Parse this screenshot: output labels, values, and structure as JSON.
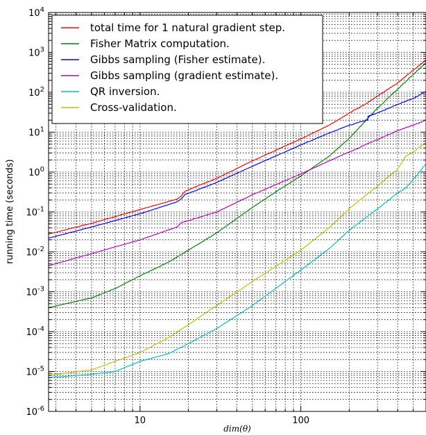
{
  "chart_data": {
    "type": "line",
    "xlabel": "dim(θ)",
    "ylabel": "running time (seconds)",
    "xscale": "log",
    "yscale": "log",
    "xlim": [
      2.7,
      600
    ],
    "ylim": [
      1e-06,
      10000
    ],
    "grid": true,
    "legend_position": "top-left",
    "x_tick_labels": [
      {
        "value": 10,
        "label": "10"
      },
      {
        "value": 100,
        "label": "100"
      }
    ],
    "y_tick_labels": [
      {
        "value": 1e-06,
        "base": "10",
        "exp": "-6"
      },
      {
        "value": 1e-05,
        "base": "10",
        "exp": "-5"
      },
      {
        "value": 0.0001,
        "base": "10",
        "exp": "-4"
      },
      {
        "value": 0.001,
        "base": "10",
        "exp": "-3"
      },
      {
        "value": 0.01,
        "base": "10",
        "exp": "-2"
      },
      {
        "value": 0.1,
        "base": "10",
        "exp": "-1"
      },
      {
        "value": 1,
        "base": "10",
        "exp": "0"
      },
      {
        "value": 10,
        "base": "10",
        "exp": "1"
      },
      {
        "value": 100,
        "base": "10",
        "exp": "2"
      },
      {
        "value": 1000,
        "base": "10",
        "exp": "3"
      },
      {
        "value": 10000,
        "base": "10",
        "exp": "4"
      }
    ],
    "series": [
      {
        "name": "total time for 1 natural gradient step.",
        "color": "#ff0000",
        "points": [
          [
            2.7,
            0.028
          ],
          [
            5,
            0.052
          ],
          [
            10,
            0.115
          ],
          [
            17,
            0.21
          ],
          [
            18,
            0.25
          ],
          [
            19,
            0.33
          ],
          [
            30,
            0.7
          ],
          [
            50,
            1.9
          ],
          [
            100,
            6.8
          ],
          [
            150,
            15
          ],
          [
            200,
            30
          ],
          [
            260,
            55
          ],
          [
            300,
            80
          ],
          [
            400,
            170
          ],
          [
            500,
            360
          ],
          [
            600,
            650
          ]
        ]
      },
      {
        "name": "Fisher Matrix computation.",
        "color": "#008000",
        "points": [
          [
            2.7,
            0.0004
          ],
          [
            5,
            0.0007
          ],
          [
            7,
            0.0012
          ],
          [
            10,
            0.0025
          ],
          [
            15,
            0.0055
          ],
          [
            20,
            0.011
          ],
          [
            30,
            0.03
          ],
          [
            50,
            0.13
          ],
          [
            70,
            0.32
          ],
          [
            100,
            0.8
          ],
          [
            150,
            2.5
          ],
          [
            200,
            7
          ],
          [
            260,
            22
          ],
          [
            300,
            40
          ],
          [
            400,
            120
          ],
          [
            500,
            280
          ],
          [
            600,
            550
          ]
        ]
      },
      {
        "name": "Gibbs sampling (Fisher estimate).",
        "color": "#0000ff",
        "points": [
          [
            2.7,
            0.022
          ],
          [
            5,
            0.042
          ],
          [
            10,
            0.09
          ],
          [
            17,
            0.18
          ],
          [
            18,
            0.21
          ],
          [
            19,
            0.27
          ],
          [
            30,
            0.55
          ],
          [
            50,
            1.4
          ],
          [
            100,
            4.8
          ],
          [
            150,
            9.5
          ],
          [
            200,
            15
          ],
          [
            260,
            20
          ],
          [
            262,
            25
          ],
          [
            300,
            30
          ],
          [
            400,
            50
          ],
          [
            500,
            70
          ],
          [
            600,
            105
          ]
        ]
      },
      {
        "name": "Gibbs sampling (gradient estimate).",
        "color": "#bf00bf",
        "points": [
          [
            2.7,
            0.0045
          ],
          [
            5,
            0.009
          ],
          [
            10,
            0.02
          ],
          [
            17,
            0.042
          ],
          [
            18,
            0.053
          ],
          [
            30,
            0.1
          ],
          [
            50,
            0.27
          ],
          [
            100,
            0.9
          ],
          [
            150,
            1.9
          ],
          [
            200,
            3.2
          ],
          [
            300,
            6.5
          ],
          [
            400,
            11
          ],
          [
            500,
            15
          ],
          [
            600,
            20
          ]
        ]
      },
      {
        "name": "QR inversion.",
        "color": "#00bfbf",
        "points": [
          [
            2.7,
            7e-06
          ],
          [
            5,
            8.5e-06
          ],
          [
            7,
            1e-05
          ],
          [
            10,
            1.8e-05
          ],
          [
            15,
            2.8e-05
          ],
          [
            20,
            5e-05
          ],
          [
            30,
            0.00012
          ],
          [
            50,
            0.00045
          ],
          [
            100,
            0.0035
          ],
          [
            150,
            0.012
          ],
          [
            200,
            0.035
          ],
          [
            300,
            0.12
          ],
          [
            400,
            0.3
          ],
          [
            450,
            0.4
          ],
          [
            500,
            0.65
          ],
          [
            600,
            1.6
          ]
        ]
      },
      {
        "name": "Cross-validation.",
        "color": "#bfbf00",
        "points": [
          [
            2.7,
            8e-06
          ],
          [
            5,
            1.1e-05
          ],
          [
            7,
            1.8e-05
          ],
          [
            10,
            3e-05
          ],
          [
            15,
            7e-05
          ],
          [
            20,
            0.00015
          ],
          [
            30,
            0.00045
          ],
          [
            50,
            0.0018
          ],
          [
            100,
            0.011
          ],
          [
            150,
            0.04
          ],
          [
            200,
            0.12
          ],
          [
            300,
            0.45
          ],
          [
            400,
            1.2
          ],
          [
            450,
            2.5
          ],
          [
            500,
            3.2
          ],
          [
            600,
            5.5
          ]
        ]
      }
    ]
  }
}
